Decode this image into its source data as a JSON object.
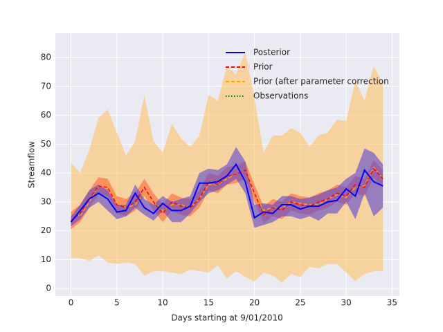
{
  "chart_data": {
    "type": "line",
    "xlabel": "Days starting at 9/01/2010",
    "ylabel": "Streamflow",
    "x": [
      0,
      1,
      2,
      3,
      4,
      5,
      6,
      7,
      8,
      9,
      10,
      11,
      12,
      13,
      14,
      15,
      16,
      17,
      18,
      19,
      20,
      21,
      22,
      23,
      24,
      25,
      26,
      27,
      28,
      29,
      30,
      31,
      32,
      33,
      34
    ],
    "xlim": [
      -1.7,
      35.8
    ],
    "xticks": [
      0,
      5,
      10,
      15,
      20,
      25,
      30,
      35
    ],
    "ylim": [
      -2.6,
      88.4
    ],
    "yticks": [
      0,
      10,
      20,
      30,
      40,
      50,
      60,
      70,
      80
    ],
    "grid": true,
    "legend": "upper center",
    "background": "#eaeaf2",
    "series": [
      {
        "name": "Posterior",
        "color": "#0000ff",
        "style": "solid",
        "band_color": "rgba(90,70,210,0.6)",
        "values": [
          23,
          27,
          31,
          33,
          31,
          26.5,
          27,
          33,
          28,
          26,
          29.5,
          27,
          27,
          28.5,
          36.5,
          36.5,
          37,
          39,
          43,
          37,
          24.5,
          26.5,
          26,
          29,
          29,
          27.5,
          28.5,
          28.5,
          30,
          30.5,
          34.5,
          32,
          41,
          37,
          35.5
        ],
        "lower": [
          21.5,
          24,
          28,
          30,
          27,
          24,
          25,
          28,
          25.5,
          23.5,
          27,
          23,
          23,
          26,
          30,
          33,
          34,
          36,
          38,
          33,
          21,
          22,
          23,
          25,
          25,
          24,
          25,
          23.5,
          26,
          26,
          30,
          24,
          33,
          25,
          28
        ],
        "upper": [
          25,
          29,
          34,
          36,
          34,
          29,
          29,
          36,
          31,
          29,
          32,
          30,
          31,
          32,
          40,
          41.5,
          41,
          43,
          49,
          44,
          29,
          29.5,
          29,
          32,
          32,
          31,
          31.5,
          32.5,
          34,
          35,
          38,
          40,
          48.5,
          47,
          43
        ]
      },
      {
        "name": "Prior",
        "color": "#ff0000",
        "style": "dashed",
        "band_color": "rgba(255,90,50,0.55)",
        "values": [
          23.5,
          26,
          31,
          35.5,
          35,
          29,
          28,
          30,
          35,
          30,
          26,
          30,
          28.5,
          28,
          31,
          37,
          36,
          39,
          39.5,
          41,
          33,
          25.5,
          28,
          27,
          30,
          29,
          28.5,
          30,
          31,
          33,
          32,
          36,
          35,
          41.5,
          38
        ],
        "lower": [
          20.5,
          23,
          28,
          32.5,
          32,
          26,
          25,
          27,
          32,
          27,
          23,
          27,
          25.5,
          25,
          28,
          34,
          33,
          36,
          36.5,
          38,
          30,
          22.5,
          25,
          24,
          27,
          26,
          25.5,
          27,
          28,
          30,
          29,
          33,
          32,
          38.5,
          35
        ],
        "upper": [
          26.5,
          29,
          34,
          38.5,
          38,
          32,
          31,
          33,
          38,
          33,
          29,
          33,
          31.5,
          31,
          34,
          40,
          39,
          42,
          42.5,
          44,
          36,
          28.5,
          31,
          30,
          33,
          32,
          31.5,
          33,
          34,
          36,
          35,
          39,
          38,
          44.5,
          41
        ]
      },
      {
        "name": "Prior (after parameter correction",
        "color": "#ffa500",
        "style": "dashed",
        "band_color": "rgba(255,190,90,0.55)",
        "values": [
          26.5,
          25,
          30,
          35.5,
          36,
          30.5,
          28,
          29,
          33,
          30,
          27,
          29,
          29,
          28,
          31,
          36,
          36,
          38,
          39.5,
          41,
          33,
          27,
          28,
          28,
          30,
          29.5,
          29,
          29,
          31,
          32.5,
          31.5,
          35,
          35.5,
          42,
          38
        ],
        "lower": [
          10.5,
          10.5,
          9.5,
          11.5,
          9,
          8.5,
          9,
          8.5,
          4.5,
          6,
          6,
          5.5,
          5,
          6.5,
          6,
          5.5,
          8,
          3.5,
          6,
          4,
          2.5,
          5.5,
          4.5,
          2,
          5,
          4,
          7.5,
          7,
          8.5,
          8.5,
          5.5,
          2.5,
          5,
          6,
          6
        ],
        "upper": [
          43.5,
          40,
          48,
          59,
          62,
          54,
          46,
          51,
          67,
          51,
          47,
          57,
          52,
          49,
          53,
          67,
          65,
          77,
          74,
          82,
          66,
          47,
          53,
          53,
          55.5,
          54,
          49,
          53,
          54,
          58.5,
          58,
          72,
          65,
          77,
          71
        ]
      },
      {
        "name": "Observations",
        "color": "#008000",
        "style": "dotted",
        "values": [
          null,
          null,
          null,
          null,
          null,
          null,
          null,
          null,
          null,
          null,
          null,
          null,
          null,
          null,
          null,
          null,
          null,
          null,
          null,
          null,
          null,
          null,
          null,
          null,
          null,
          null,
          null,
          null,
          null,
          null,
          null,
          null,
          null,
          null,
          null
        ]
      }
    ]
  }
}
